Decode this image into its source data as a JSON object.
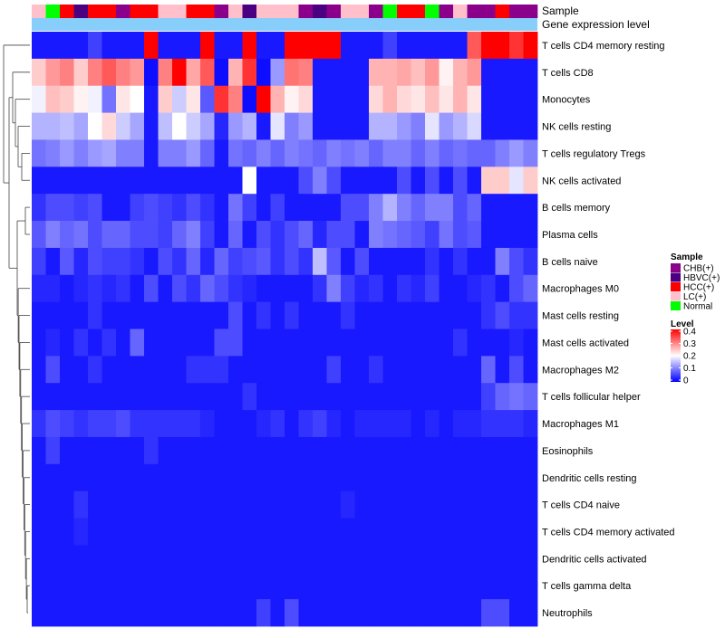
{
  "chart_data": {
    "type": "heatmap",
    "title": "",
    "annotation_labels": [
      "Sample",
      "Gene expression level"
    ],
    "sample_groups": [
      "LC(+)",
      "Normal",
      "HCC(+)",
      "HBVC(+)",
      "HCC(+)",
      "HCC(+)",
      "CHB(+)",
      "HCC(+)",
      "HCC(+)",
      "LC(+)",
      "LC(+)",
      "HCC(+)",
      "HCC(+)",
      "CHB(+)",
      "LC(+)",
      "HBVC(+)",
      "LC(+)",
      "LC(+)",
      "LC(+)",
      "CHB(+)",
      "HBVC(+)",
      "CHB(+)",
      "LC(+)",
      "LC(+)",
      "CHB(+)",
      "Normal",
      "HCC(+)",
      "HCC(+)",
      "Normal",
      "CHB(+)",
      "LC(+)",
      "CHB(+)",
      "CHB(+)",
      "HCC(+)",
      "CHB(+)",
      "CHB(+)"
    ],
    "rows": [
      "T cells CD4 memory resting",
      "T cells CD8",
      "Monocytes",
      "NK cells resting",
      "T cells regulatory  Tregs",
      "NK cells activated",
      "B cells memory",
      "Plasma cells",
      "B cells naive",
      "Macrophages M0",
      "Mast cells resting",
      "Mast cells activated",
      "Macrophages M2",
      "T cells follicular helper",
      "Macrophages M1",
      "Eosinophils",
      "Dendritic cells resting",
      "T cells CD4 naive",
      "T cells CD4 memory activated",
      "Dendritic cells activated",
      "T cells gamma delta",
      "Neutrophils"
    ],
    "values": [
      [
        0.02,
        0.02,
        0.02,
        0.02,
        0.05,
        0.02,
        0.02,
        0.02,
        0.4,
        0.02,
        0.02,
        0.02,
        0.4,
        0.02,
        0.02,
        0.4,
        0.02,
        0.02,
        0.4,
        0.4,
        0.4,
        0.4,
        0.02,
        0.02,
        0.02,
        0.05,
        0.02,
        0.02,
        0.02,
        0.02,
        0.02,
        0.33,
        0.4,
        0.4,
        0.36,
        0.4
      ],
      [
        0.24,
        0.28,
        0.3,
        0.24,
        0.3,
        0.33,
        0.3,
        0.28,
        0.01,
        0.3,
        0.4,
        0.27,
        0.33,
        0.01,
        0.26,
        0.36,
        0.01,
        0.12,
        0.31,
        0.3,
        0.02,
        0.02,
        0.02,
        0.02,
        0.26,
        0.26,
        0.27,
        0.25,
        0.28,
        0.21,
        0.26,
        0.28,
        0.02,
        0.02,
        0.02,
        0.02
      ],
      [
        0.19,
        0.25,
        0.24,
        0.21,
        0.19,
        0.09,
        0.22,
        0.2,
        0.02,
        0.24,
        0.16,
        0.22,
        0.07,
        0.36,
        0.3,
        0.01,
        0.4,
        0.26,
        0.21,
        0.23,
        0.02,
        0.02,
        0.02,
        0.02,
        0.23,
        0.26,
        0.23,
        0.22,
        0.25,
        0.22,
        0.26,
        0.22,
        0.02,
        0.02,
        0.02,
        0.02
      ],
      [
        0.14,
        0.14,
        0.15,
        0.13,
        0.2,
        0.23,
        0.16,
        0.13,
        0.02,
        0.15,
        0.2,
        0.16,
        0.13,
        0.03,
        0.12,
        0.14,
        0.02,
        0.18,
        0.1,
        0.12,
        0.02,
        0.02,
        0.02,
        0.02,
        0.14,
        0.14,
        0.12,
        0.1,
        0.18,
        0.12,
        0.14,
        0.17,
        0.02,
        0.02,
        0.02,
        0.02
      ],
      [
        0.09,
        0.1,
        0.12,
        0.1,
        0.12,
        0.13,
        0.1,
        0.1,
        0.02,
        0.1,
        0.1,
        0.12,
        0.08,
        0.02,
        0.09,
        0.08,
        0.1,
        0.08,
        0.1,
        0.09,
        0.08,
        0.1,
        0.09,
        0.1,
        0.08,
        0.1,
        0.1,
        0.08,
        0.1,
        0.08,
        0.09,
        0.08,
        0.08,
        0.1,
        0.12,
        0.1
      ],
      [
        0.02,
        0.02,
        0.02,
        0.02,
        0.02,
        0.02,
        0.02,
        0.02,
        0.02,
        0.02,
        0.02,
        0.02,
        0.02,
        0.02,
        0.02,
        0.2,
        0.02,
        0.02,
        0.02,
        0.06,
        0.1,
        0.06,
        0.02,
        0.02,
        0.02,
        0.02,
        0.06,
        0.02,
        0.06,
        0.02,
        0.06,
        0.02,
        0.24,
        0.24,
        0.18,
        0.24
      ],
      [
        0.04,
        0.06,
        0.06,
        0.05,
        0.06,
        0.02,
        0.02,
        0.05,
        0.06,
        0.05,
        0.04,
        0.06,
        0.04,
        0.02,
        0.09,
        0.05,
        0.02,
        0.05,
        0.02,
        0.02,
        0.02,
        0.02,
        0.06,
        0.06,
        0.1,
        0.14,
        0.1,
        0.08,
        0.1,
        0.1,
        0.06,
        0.08,
        0.02,
        0.02,
        0.02,
        0.02
      ],
      [
        0.07,
        0.1,
        0.08,
        0.09,
        0.06,
        0.08,
        0.08,
        0.06,
        0.06,
        0.05,
        0.08,
        0.1,
        0.05,
        0.02,
        0.08,
        0.02,
        0.06,
        0.04,
        0.06,
        0.08,
        0.03,
        0.06,
        0.06,
        0.02,
        0.1,
        0.09,
        0.08,
        0.07,
        0.05,
        0.09,
        0.06,
        0.07,
        0.02,
        0.02,
        0.02,
        0.02
      ],
      [
        0.05,
        0.02,
        0.07,
        0.03,
        0.06,
        0.05,
        0.05,
        0.04,
        0.02,
        0.06,
        0.04,
        0.08,
        0.03,
        0.08,
        0.05,
        0.06,
        0.07,
        0.04,
        0.06,
        0.04,
        0.15,
        0.07,
        0.02,
        0.06,
        0.02,
        0.02,
        0.02,
        0.02,
        0.04,
        0.02,
        0.04,
        0.02,
        0.02,
        0.1,
        0.06,
        0.04
      ],
      [
        0.03,
        0.03,
        0.02,
        0.03,
        0.04,
        0.03,
        0.04,
        0.02,
        0.06,
        0.02,
        0.06,
        0.04,
        0.08,
        0.06,
        0.04,
        0.03,
        0.02,
        0.02,
        0.02,
        0.02,
        0.04,
        0.1,
        0.05,
        0.03,
        0.04,
        0.02,
        0.04,
        0.03,
        0.05,
        0.02,
        0.02,
        0.03,
        0.04,
        0.02,
        0.06,
        0.08
      ],
      [
        0.02,
        0.02,
        0.02,
        0.02,
        0.04,
        0.02,
        0.02,
        0.02,
        0.02,
        0.02,
        0.02,
        0.02,
        0.02,
        0.02,
        0.06,
        0.02,
        0.04,
        0.02,
        0.04,
        0.02,
        0.02,
        0.02,
        0.04,
        0.02,
        0.02,
        0.02,
        0.02,
        0.02,
        0.02,
        0.02,
        0.02,
        0.02,
        0.04,
        0.06,
        0.04,
        0.04
      ],
      [
        0.02,
        0.03,
        0.02,
        0.04,
        0.02,
        0.04,
        0.02,
        0.08,
        0.02,
        0.02,
        0.02,
        0.02,
        0.02,
        0.06,
        0.06,
        0.02,
        0.02,
        0.02,
        0.02,
        0.02,
        0.02,
        0.02,
        0.02,
        0.02,
        0.02,
        0.02,
        0.02,
        0.02,
        0.02,
        0.02,
        0.04,
        0.02,
        0.02,
        0.02,
        0.03,
        0.02
      ],
      [
        0.02,
        0.06,
        0.02,
        0.02,
        0.04,
        0.02,
        0.02,
        0.02,
        0.02,
        0.02,
        0.02,
        0.04,
        0.04,
        0.04,
        0.02,
        0.02,
        0.02,
        0.02,
        0.02,
        0.02,
        0.02,
        0.05,
        0.02,
        0.02,
        0.04,
        0.02,
        0.02,
        0.02,
        0.02,
        0.02,
        0.02,
        0.02,
        0.08,
        0.02,
        0.06,
        0.02
      ],
      [
        0.02,
        0.02,
        0.02,
        0.02,
        0.02,
        0.02,
        0.02,
        0.02,
        0.02,
        0.02,
        0.02,
        0.02,
        0.02,
        0.02,
        0.02,
        0.04,
        0.02,
        0.02,
        0.02,
        0.02,
        0.02,
        0.02,
        0.02,
        0.02,
        0.02,
        0.02,
        0.02,
        0.02,
        0.02,
        0.02,
        0.02,
        0.02,
        0.05,
        0.08,
        0.09,
        0.08
      ],
      [
        0.04,
        0.06,
        0.05,
        0.04,
        0.05,
        0.05,
        0.06,
        0.04,
        0.04,
        0.04,
        0.04,
        0.04,
        0.03,
        0.02,
        0.02,
        0.02,
        0.03,
        0.04,
        0.02,
        0.04,
        0.05,
        0.03,
        0.02,
        0.03,
        0.03,
        0.03,
        0.03,
        0.02,
        0.03,
        0.02,
        0.03,
        0.03,
        0.04,
        0.04,
        0.04,
        0.03
      ],
      [
        0.02,
        0.05,
        0.02,
        0.02,
        0.02,
        0.02,
        0.02,
        0.02,
        0.04,
        0.02,
        0.02,
        0.02,
        0.02,
        0.02,
        0.02,
        0.02,
        0.02,
        0.02,
        0.02,
        0.02,
        0.02,
        0.02,
        0.02,
        0.02,
        0.02,
        0.02,
        0.02,
        0.02,
        0.02,
        0.02,
        0.02,
        0.02,
        0.02,
        0.02,
        0.02,
        0.02
      ],
      [
        0.02,
        0.02,
        0.02,
        0.02,
        0.02,
        0.02,
        0.02,
        0.02,
        0.02,
        0.02,
        0.02,
        0.02,
        0.02,
        0.02,
        0.02,
        0.02,
        0.02,
        0.02,
        0.02,
        0.02,
        0.02,
        0.02,
        0.02,
        0.02,
        0.02,
        0.02,
        0.02,
        0.02,
        0.02,
        0.02,
        0.02,
        0.02,
        0.02,
        0.02,
        0.02,
        0.02
      ],
      [
        0.02,
        0.02,
        0.02,
        0.04,
        0.02,
        0.02,
        0.02,
        0.02,
        0.02,
        0.02,
        0.02,
        0.02,
        0.02,
        0.02,
        0.02,
        0.02,
        0.02,
        0.02,
        0.02,
        0.02,
        0.02,
        0.02,
        0.03,
        0.02,
        0.02,
        0.02,
        0.02,
        0.02,
        0.02,
        0.02,
        0.02,
        0.02,
        0.02,
        0.02,
        0.02,
        0.02
      ],
      [
        0.02,
        0.02,
        0.02,
        0.03,
        0.02,
        0.02,
        0.02,
        0.02,
        0.02,
        0.02,
        0.02,
        0.02,
        0.02,
        0.02,
        0.02,
        0.02,
        0.02,
        0.02,
        0.02,
        0.02,
        0.02,
        0.02,
        0.02,
        0.02,
        0.02,
        0.02,
        0.02,
        0.02,
        0.02,
        0.02,
        0.02,
        0.02,
        0.02,
        0.02,
        0.02,
        0.02
      ],
      [
        0.02,
        0.02,
        0.02,
        0.02,
        0.02,
        0.02,
        0.02,
        0.02,
        0.02,
        0.02,
        0.02,
        0.02,
        0.02,
        0.02,
        0.02,
        0.02,
        0.02,
        0.02,
        0.02,
        0.02,
        0.02,
        0.02,
        0.02,
        0.02,
        0.02,
        0.02,
        0.02,
        0.02,
        0.02,
        0.02,
        0.02,
        0.02,
        0.02,
        0.02,
        0.02,
        0.02
      ],
      [
        0.02,
        0.02,
        0.02,
        0.02,
        0.02,
        0.02,
        0.02,
        0.02,
        0.02,
        0.02,
        0.02,
        0.02,
        0.02,
        0.02,
        0.02,
        0.02,
        0.02,
        0.02,
        0.02,
        0.02,
        0.02,
        0.02,
        0.02,
        0.02,
        0.02,
        0.02,
        0.02,
        0.02,
        0.02,
        0.02,
        0.02,
        0.02,
        0.02,
        0.02,
        0.02,
        0.02
      ],
      [
        0.02,
        0.02,
        0.02,
        0.02,
        0.02,
        0.02,
        0.02,
        0.02,
        0.02,
        0.02,
        0.02,
        0.02,
        0.02,
        0.02,
        0.02,
        0.02,
        0.05,
        0.02,
        0.06,
        0.02,
        0.02,
        0.02,
        0.02,
        0.02,
        0.02,
        0.02,
        0.02,
        0.02,
        0.02,
        0.02,
        0.02,
        0.02,
        0.06,
        0.06,
        0.02,
        0.02
      ]
    ],
    "legend_sample": {
      "title": "Sample",
      "entries": [
        {
          "label": "CHB(+)",
          "color": "#8B008B"
        },
        {
          "label": "HBVC(+)",
          "color": "#4B0082"
        },
        {
          "label": "HCC(+)",
          "color": "#FF0000"
        },
        {
          "label": "LC(+)",
          "color": "#FFC0CB"
        },
        {
          "label": "Normal",
          "color": "#00FF00"
        }
      ]
    },
    "legend_level": {
      "title": "Level",
      "range": [
        0,
        0.4
      ],
      "ticks": [
        "0.4",
        "0.3",
        "0.2",
        "0.1",
        "0"
      ]
    },
    "colors": {
      "low": "#0000FF",
      "mid": "#FFFFFF",
      "high": "#FF0000",
      "annotation_bar": "#87CEFA"
    }
  }
}
